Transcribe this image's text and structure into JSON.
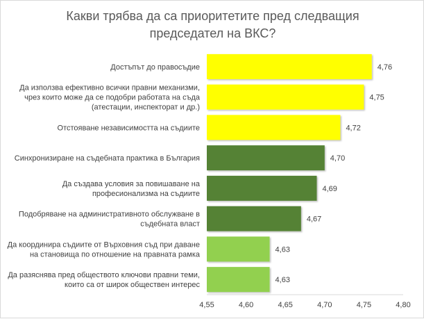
{
  "chart_data": {
    "type": "bar",
    "orientation": "horizontal",
    "title_lines": [
      "Какви трябва да са приоритетите пред следващия",
      "председател на ВКС?"
    ],
    "categories": [
      [
        "Достъпът до правосъдие"
      ],
      [
        "Да използва ефективно всички правни механизми,",
        "чрез които може да се подобри работата на съда",
        "(атестации, инспекторат и др.)"
      ],
      [
        "Отстояване независимостта на съдиите"
      ],
      [
        "Синхронизиране на съдебната практика в България"
      ],
      [
        "Да създава условия за повишаване на",
        "професионализма на съдиите"
      ],
      [
        "Подобряване на административното обслужване в",
        "съдебната власт"
      ],
      [
        "Да координира съдиите от Върховния съд при даване",
        "на становища по отношение на правната рамка"
      ],
      [
        "Да разяснява пред обществото ключови правни теми,",
        "които са от широк обществен интерес"
      ]
    ],
    "values": [
      4.76,
      4.75,
      4.72,
      4.7,
      4.69,
      4.67,
      4.63,
      4.63
    ],
    "value_labels": [
      "4,76",
      "4,75",
      "4,72",
      "4,70",
      "4,69",
      "4,67",
      "4,63",
      "4,63"
    ],
    "bar_colors": [
      "#ffff00",
      "#ffff00",
      "#ffff00",
      "#548235",
      "#548235",
      "#548235",
      "#92d050",
      "#92d050"
    ],
    "xlim": [
      4.55,
      4.8
    ],
    "xticks": [
      4.55,
      4.6,
      4.65,
      4.7,
      4.75,
      4.8
    ],
    "xtick_labels": [
      "4,55",
      "4,60",
      "4,65",
      "4,70",
      "4,75",
      "4,80"
    ],
    "grid": false,
    "legend": "none"
  }
}
